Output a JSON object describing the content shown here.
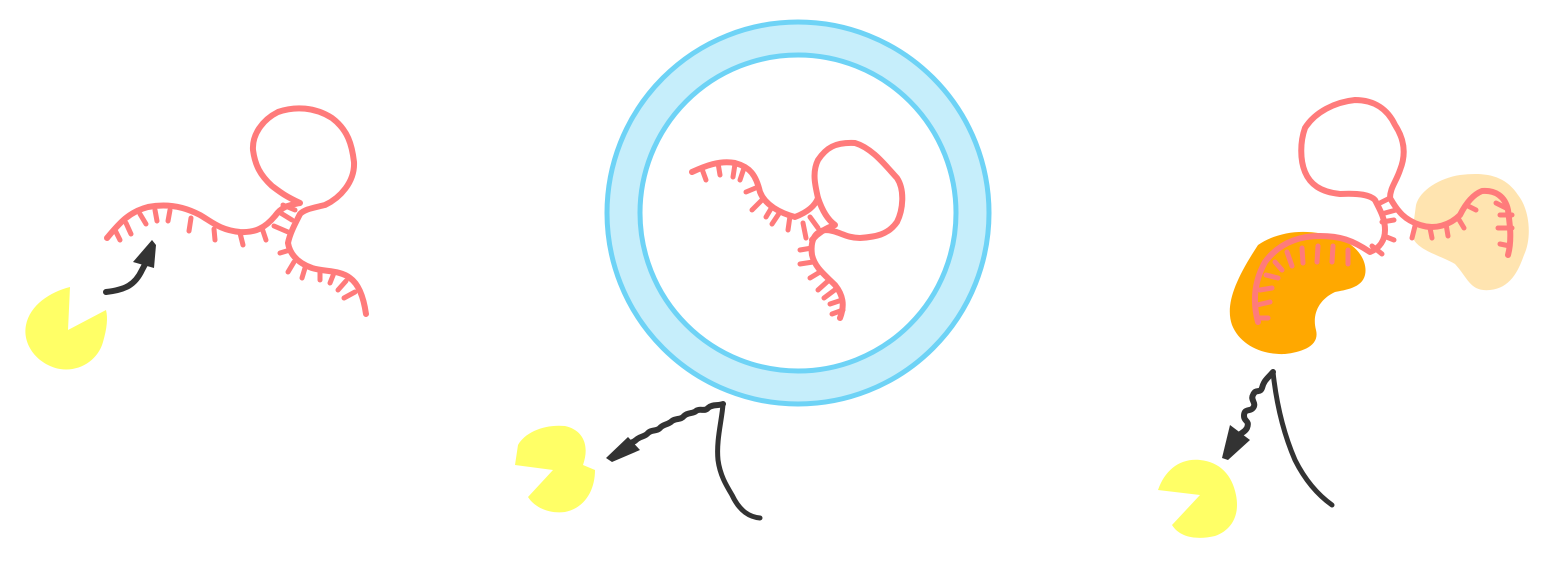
{
  "colors": {
    "rna": "#FF7B7B",
    "pacman": "#FFFF66",
    "arrow": "#333333",
    "liposome_fill": "#C6EEFB",
    "liposome_stroke": "#6ED3F6",
    "protein_dark": "#FFA800",
    "protein_light": "#FFE4B0"
  },
  "panels": [
    {
      "name": "free-rna",
      "elements": [
        "rna-molecule",
        "degrading-enzyme",
        "attack-arrow"
      ]
    },
    {
      "name": "encapsulated-rna",
      "elements": [
        "liposome",
        "rna-molecule",
        "degrading-enzyme",
        "blocked-arrow",
        "strand"
      ]
    },
    {
      "name": "protein-bound-rna",
      "elements": [
        "rna-molecule",
        "binding-protein-dark",
        "binding-protein-light",
        "degrading-enzyme",
        "blocked-arrow",
        "strand"
      ]
    }
  ]
}
